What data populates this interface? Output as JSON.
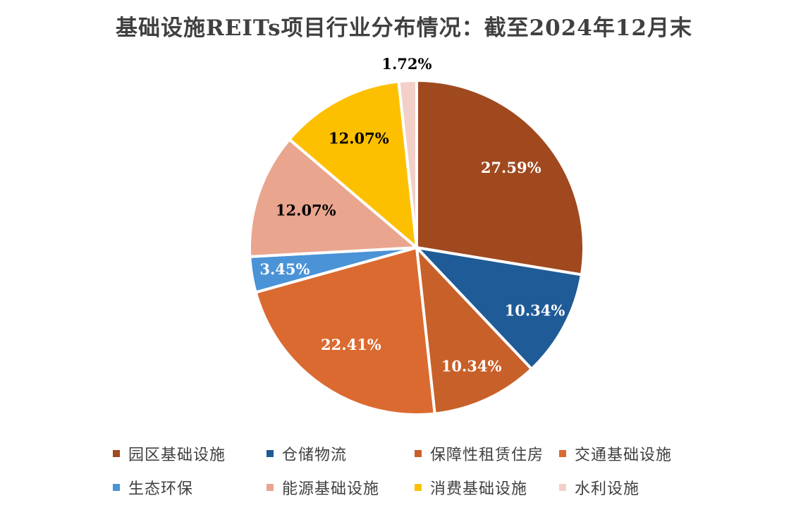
{
  "chart_data": {
    "type": "pie",
    "title": "基础设施REITs项目行业分布情况：截至2024年12月末",
    "categories": [
      "园区基础设施",
      "仓储物流",
      "保障性租赁住房",
      "交通基础设施",
      "生态环保",
      "能源基础设施",
      "消费基础设施",
      "水利设施"
    ],
    "values": [
      27.59,
      10.34,
      10.34,
      22.41,
      3.45,
      12.07,
      12.07,
      1.72
    ],
    "data_labels": [
      "27.59%",
      "10.34%",
      "10.34%",
      "22.41%",
      "3.45%",
      "12.07%",
      "12.07%",
      "1.72%"
    ],
    "colors": [
      "#A0491F",
      "#1F5B96",
      "#C8602A",
      "#DB6A30",
      "#4A93D6",
      "#EAA58E",
      "#FDC000",
      "#F2D0C8"
    ],
    "label_colors": [
      "#ffffff",
      "#ffffff",
      "#ffffff",
      "#ffffff",
      "#ffffff",
      "#000000",
      "#000000",
      "#000000"
    ],
    "start_angle_deg": 0,
    "direction": "clockwise",
    "legend_position": "bottom"
  }
}
